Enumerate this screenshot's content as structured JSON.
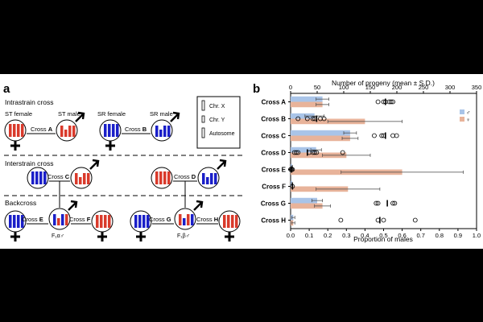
{
  "panel_a": {
    "panel_label": "a",
    "section_intrastrain": "Intrastrain cross",
    "section_interstrain": "Interstrain cross",
    "section_backcross": "Backcross",
    "st_female": "ST female",
    "st_male": "ST male",
    "sr_female": "SR female",
    "sr_male": "SR male",
    "cross_prefix": "Cross",
    "cross_letters": {
      "a": "A",
      "b": "B",
      "c": "C",
      "d": "D",
      "e": "E",
      "f": "F",
      "g": "G",
      "h": "H"
    },
    "f1_alpha": "F₁α♂",
    "f1_beta": "F₁β♂",
    "legend": {
      "chr_x": "Chr. X",
      "chr_y": "Chr. Y",
      "autosome": "Autosome"
    },
    "colors": {
      "st": "#d93a2b",
      "sr": "#1a1fc8"
    }
  },
  "panel_b": {
    "panel_label": "b",
    "legend_male": "♂",
    "legend_female": "♀"
  },
  "chart_data": {
    "type": "bar",
    "orientation": "horizontal",
    "categories": [
      "Cross A",
      "Cross B",
      "Cross C",
      "Cross D",
      "Cross E",
      "Cross F",
      "Cross G",
      "Cross H"
    ],
    "xlabel": "Proportion of males",
    "xlabel_top": "Number of progeny (mean ± S.D.)",
    "xlim": [
      0,
      1.0
    ],
    "xlim_top": [
      0,
      350
    ],
    "xticks": [
      0,
      0.1,
      0.2,
      0.3,
      0.4,
      0.5,
      0.6,
      0.7,
      0.8,
      0.9,
      1.0
    ],
    "xticks_top": [
      0,
      50,
      100,
      150,
      200,
      250,
      300,
      350
    ],
    "series": [
      {
        "color": "#a9c4e8",
        "values": [
          60,
          45,
          112,
          48,
          3,
          3,
          50,
          5
        ],
        "sd": [
          12,
          18,
          12,
          10,
          1,
          1,
          10,
          3
        ]
      },
      {
        "color": "#e8b39a",
        "values": [
          60,
          140,
          112,
          105,
          210,
          108,
          60,
          5
        ],
        "sd": [
          12,
          70,
          15,
          45,
          115,
          60,
          15,
          3
        ]
      }
    ],
    "points": [
      [
        0.47,
        0.5,
        0.51,
        0.53,
        0.54,
        0.55
      ],
      [
        0.04,
        0.09,
        0.12,
        0.13,
        0.16,
        0.18
      ],
      [
        0.45,
        0.49,
        0.5,
        0.55,
        0.57
      ],
      [
        0.02,
        0.03,
        0.04,
        0.1,
        0.12,
        0.13,
        0.14,
        0.28
      ],
      [
        0.0,
        0.005,
        0.01
      ],
      [
        0.01
      ],
      [
        0.46,
        0.47,
        0.55,
        0.56
      ],
      [
        0.27,
        0.47,
        0.5,
        0.67
      ]
    ],
    "mean_marks": [
      0.51,
      0.14,
      0.51,
      0.09,
      0.005,
      0.01,
      0.52,
      0.48
    ]
  }
}
